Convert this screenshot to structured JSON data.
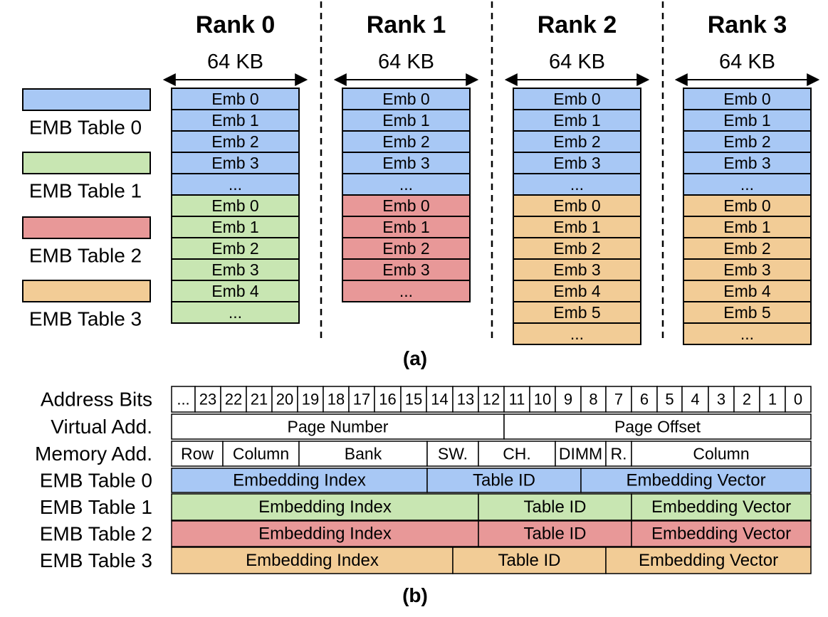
{
  "colors": {
    "blue": "#a8c8f5",
    "green": "#c8e6b2",
    "red": "#e89898",
    "orange": "#f2cc96",
    "white": "#ffffff",
    "stroke": "#000000"
  },
  "legend": [
    {
      "label": "EMB Table 0",
      "color": "blue"
    },
    {
      "label": "EMB Table 1",
      "color": "green"
    },
    {
      "label": "EMB Table 2",
      "color": "red"
    },
    {
      "label": "EMB Table 3",
      "color": "orange"
    }
  ],
  "ranks": [
    {
      "title": "Rank 0",
      "size": "64 KB",
      "groups": [
        {
          "color": "blue",
          "rows": [
            "Emb 0",
            "Emb 1",
            "Emb 2",
            "Emb 3",
            "..."
          ]
        },
        {
          "color": "green",
          "rows": [
            "Emb 0",
            "Emb 1",
            "Emb 2",
            "Emb 3",
            "Emb 4",
            "..."
          ]
        }
      ]
    },
    {
      "title": "Rank 1",
      "size": "64 KB",
      "groups": [
        {
          "color": "blue",
          "rows": [
            "Emb 0",
            "Emb 1",
            "Emb 2",
            "Emb 3",
            "..."
          ]
        },
        {
          "color": "red",
          "rows": [
            "Emb 0",
            "Emb 1",
            "Emb 2",
            "Emb 3",
            "..."
          ]
        }
      ]
    },
    {
      "title": "Rank 2",
      "size": "64 KB",
      "groups": [
        {
          "color": "blue",
          "rows": [
            "Emb 0",
            "Emb 1",
            "Emb 2",
            "Emb 3",
            "..."
          ]
        },
        {
          "color": "orange",
          "rows": [
            "Emb 0",
            "Emb 1",
            "Emb 2",
            "Emb 3",
            "Emb 4",
            "Emb 5",
            "..."
          ]
        }
      ]
    },
    {
      "title": "Rank 3",
      "size": "64 KB",
      "groups": [
        {
          "color": "blue",
          "rows": [
            "Emb 0",
            "Emb 1",
            "Emb 2",
            "Emb 3",
            "..."
          ]
        },
        {
          "color": "orange",
          "rows": [
            "Emb 0",
            "Emb 1",
            "Emb 2",
            "Emb 3",
            "Emb 4",
            "Emb 5",
            "..."
          ]
        }
      ]
    }
  ],
  "caption_a": "(a)",
  "caption_b": "(b)",
  "address": {
    "row_labels": [
      "Address Bits",
      "Virtual Add.",
      "Memory Add.",
      "EMB Table 0",
      "EMB Table 1",
      "EMB Table 2",
      "EMB Table 3"
    ],
    "bits": [
      "...",
      "23",
      "22",
      "21",
      "20",
      "19",
      "18",
      "17",
      "16",
      "15",
      "14",
      "13",
      "12",
      "11",
      "10",
      "9",
      "8",
      "7",
      "6",
      "5",
      "4",
      "3",
      "2",
      "1",
      "0"
    ],
    "virtual": [
      {
        "label": "Page Number",
        "span": 13
      },
      {
        "label": "Page Offset",
        "span": 12
      }
    ],
    "memory": [
      {
        "label": "Row",
        "span": 2
      },
      {
        "label": "Column",
        "span": 3
      },
      {
        "label": "Bank",
        "span": 5
      },
      {
        "label": "SW.",
        "span": 2
      },
      {
        "label": "CH.",
        "span": 3
      },
      {
        "label": "DIMM",
        "span": 1
      },
      {
        "label": "R.",
        "span": 1
      },
      {
        "label": "Column",
        "span": 8
      }
    ],
    "tables": [
      {
        "color": "blue",
        "fields": [
          {
            "label": "Embedding Index",
            "span": 10
          },
          {
            "label": "Table ID",
            "span": 6
          },
          {
            "label": "Embedding Vector",
            "span": 9
          }
        ]
      },
      {
        "color": "green",
        "fields": [
          {
            "label": "Embedding Index",
            "span": 12
          },
          {
            "label": "Table ID",
            "span": 6
          },
          {
            "label": "Embedding Vector",
            "span": 7
          }
        ]
      },
      {
        "color": "red",
        "fields": [
          {
            "label": "Embedding Index",
            "span": 12
          },
          {
            "label": "Table ID",
            "span": 6
          },
          {
            "label": "Embedding Vector",
            "span": 7
          }
        ]
      },
      {
        "color": "orange",
        "fields": [
          {
            "label": "Embedding Index",
            "span": 11
          },
          {
            "label": "Table ID",
            "span": 6
          },
          {
            "label": "Embedding Vector",
            "span": 8
          }
        ]
      }
    ]
  }
}
